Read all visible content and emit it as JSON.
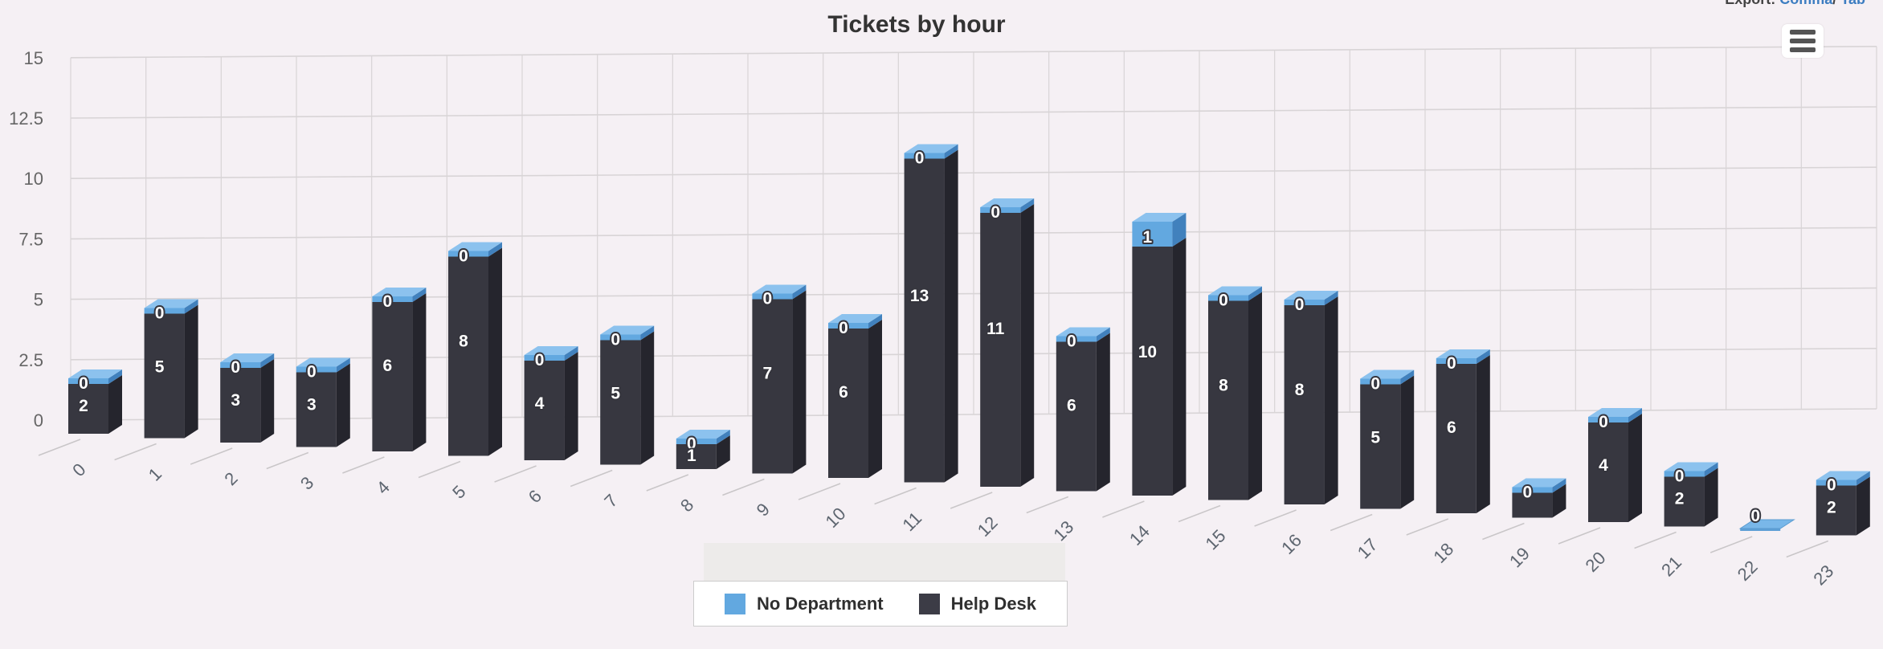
{
  "header": {
    "export_label": "Export:",
    "export_links": [
      {
        "label": "Comma"
      },
      {
        "label": "Tab"
      }
    ],
    "separator": "/"
  },
  "chart": {
    "title": "Tickets by hour",
    "context_menu_icon": "hamburger-icon"
  },
  "legend": {
    "items": [
      {
        "label": "No Department",
        "color": "#62a8e0"
      },
      {
        "label": "Help Desk",
        "color": "#3c3c46"
      }
    ]
  },
  "colors": {
    "background": "#f5f0f4",
    "gridline": "#d8d4d6",
    "bar_front_dark": "#373740",
    "bar_side_dark": "#25252d",
    "cap_front_blue": "#62a8e0",
    "cap_side_blue": "#4181bd",
    "cap_top_blue": "#8cc2ee",
    "axis_label": "#666666",
    "data_label_fill": "#ffffff",
    "data_label_outline": "#35353d",
    "link": "#3c7dc1"
  },
  "chart_data": {
    "type": "bar",
    "subtype": "3d-stacked-column",
    "title": "Tickets by hour",
    "categories": [
      "0",
      "1",
      "2",
      "3",
      "4",
      "5",
      "6",
      "7",
      "8",
      "9",
      "10",
      "11",
      "12",
      "13",
      "14",
      "15",
      "16",
      "17",
      "18",
      "19",
      "20",
      "21",
      "22",
      "23"
    ],
    "series": [
      {
        "name": "No Department",
        "color": "#62a8e0",
        "values": [
          0,
          0,
          0,
          0,
          0,
          0,
          0,
          0,
          0,
          0,
          0,
          0,
          0,
          0,
          1,
          0,
          0,
          0,
          0,
          0,
          0,
          0,
          0,
          0
        ],
        "labels": [
          "0",
          "0",
          "0",
          "0",
          "0",
          "0",
          "0",
          "0",
          "0",
          "0",
          "0",
          "0",
          "0",
          "0",
          "1",
          "0",
          "0",
          "0",
          "0",
          "0",
          "0",
          "0",
          "0",
          "0"
        ]
      },
      {
        "name": "Help Desk",
        "color": "#373740",
        "values": [
          2,
          5,
          3,
          3,
          6,
          8,
          4,
          5,
          1,
          7,
          6,
          13,
          11,
          6,
          10,
          8,
          8,
          5,
          6,
          1,
          4,
          2,
          0,
          2
        ],
        "labels": [
          "2",
          "5",
          "3",
          "3",
          "6",
          "8",
          "4",
          "5",
          "1",
          "7",
          "6",
          "13",
          "11",
          "6",
          "10",
          "8",
          "8",
          "5",
          "6",
          "",
          "4",
          "2",
          "",
          "2"
        ]
      }
    ],
    "stacked": true,
    "yticks": [
      0,
      2.5,
      5,
      7.5,
      10,
      12.5,
      15
    ],
    "ylim": [
      0,
      15
    ],
    "grid": true,
    "legend_position": "bottom",
    "xlabel": "",
    "ylabel": ""
  }
}
